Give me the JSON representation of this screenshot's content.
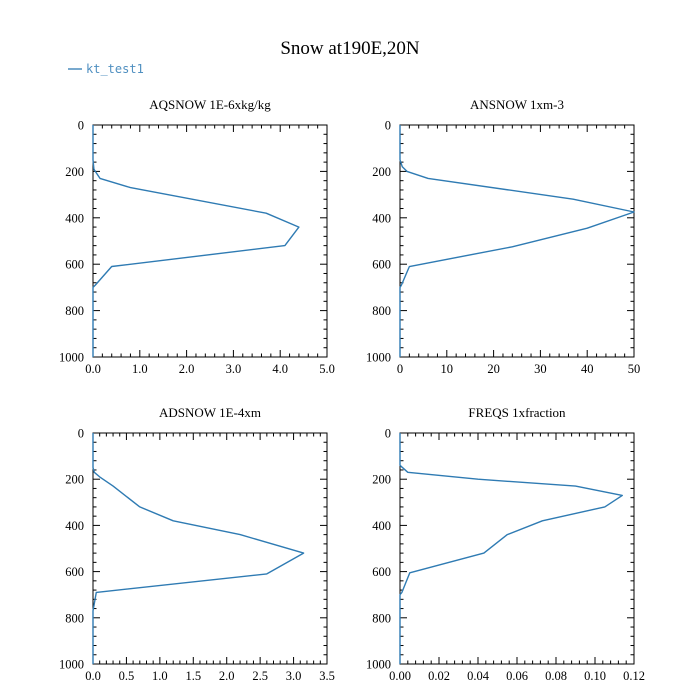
{
  "title": "Snow at190E,20N",
  "legend": {
    "items": [
      {
        "name": "kt_test1",
        "color": "#2f7bb3"
      }
    ],
    "placement": "top-left"
  },
  "chart_data": [
    {
      "type": "line",
      "title": "AQSNOW  1E-6xkg/kg",
      "xlim": [
        0,
        5
      ],
      "ylim": [
        0,
        1000
      ],
      "y_inverted": true,
      "x_ticks": [
        "0.0",
        "1.0",
        "2.0",
        "3.0",
        "4.0",
        "5.0"
      ],
      "x_tick_values": [
        0,
        1,
        2,
        3,
        4,
        5
      ],
      "y_ticks": [
        "0",
        "200",
        "400",
        "600",
        "800",
        "1000"
      ],
      "y_tick_values": [
        0,
        200,
        400,
        600,
        800,
        1000
      ],
      "series": [
        {
          "name": "kt_test1",
          "x": [
            0,
            0,
            0.02,
            0.05,
            0.15,
            0.8,
            3.7,
            4.4,
            4.1,
            0.4,
            0.05,
            0,
            0
          ],
          "y": [
            0,
            150,
            190,
            200,
            230,
            270,
            380,
            440,
            520,
            610,
            690,
            700,
            1000
          ]
        }
      ]
    },
    {
      "type": "line",
      "title": "ANSNOW  1xm-3",
      "xlim": [
        0,
        50
      ],
      "ylim": [
        0,
        1000
      ],
      "y_inverted": true,
      "x_ticks": [
        "0",
        "10",
        "20",
        "30",
        "40",
        "50"
      ],
      "x_tick_values": [
        0,
        10,
        20,
        30,
        40,
        50
      ],
      "y_ticks": [
        "0",
        "200",
        "400",
        "600",
        "800",
        "1000"
      ],
      "y_tick_values": [
        0,
        200,
        400,
        600,
        800,
        1000
      ],
      "series": [
        {
          "name": "kt_test1",
          "x": [
            0,
            0,
            0.5,
            1.5,
            6,
            37,
            50,
            40,
            24,
            2,
            0.3,
            0,
            0
          ],
          "y": [
            0,
            150,
            180,
            200,
            230,
            320,
            375,
            445,
            525,
            610,
            690,
            700,
            1000
          ]
        }
      ]
    },
    {
      "type": "line",
      "title": "ADSNOW  1E-4xm",
      "xlim": [
        0,
        3.5
      ],
      "ylim": [
        0,
        1000
      ],
      "y_inverted": true,
      "x_ticks": [
        "0.0",
        "0.5",
        "1.0",
        "1.5",
        "2.0",
        "2.5",
        "3.0",
        "3.5"
      ],
      "x_tick_values": [
        0,
        0.5,
        1,
        1.5,
        2,
        2.5,
        3,
        3.5
      ],
      "y_ticks": [
        "0",
        "200",
        "400",
        "600",
        "800",
        "1000"
      ],
      "y_tick_values": [
        0,
        200,
        400,
        600,
        800,
        1000
      ],
      "series": [
        {
          "name": "kt_test1",
          "x": [
            0,
            0,
            0.02,
            0.1,
            0.3,
            0.7,
            1.2,
            2.2,
            3.15,
            2.6,
            0.05,
            0,
            0
          ],
          "y": [
            0,
            150,
            170,
            190,
            230,
            320,
            380,
            440,
            520,
            610,
            690,
            770,
            1000
          ]
        }
      ]
    },
    {
      "type": "line",
      "title": "FREQS  1xfraction",
      "xlim": [
        0,
        0.12
      ],
      "ylim": [
        0,
        1000
      ],
      "y_inverted": true,
      "x_ticks": [
        "0.00",
        "0.02",
        "0.04",
        "0.06",
        "0.08",
        "0.10",
        "0.12"
      ],
      "x_tick_values": [
        0,
        0.02,
        0.04,
        0.06,
        0.08,
        0.1,
        0.12
      ],
      "y_ticks": [
        "0",
        "200",
        "400",
        "600",
        "800",
        "1000"
      ],
      "y_tick_values": [
        0,
        200,
        400,
        600,
        800,
        1000
      ],
      "series": [
        {
          "name": "kt_test1",
          "x": [
            0,
            0,
            0.004,
            0.04,
            0.09,
            0.114,
            0.105,
            0.073,
            0.055,
            0.043,
            0.005,
            0.001,
            0,
            0
          ],
          "y": [
            0,
            140,
            170,
            200,
            230,
            270,
            320,
            380,
            440,
            520,
            605,
            690,
            700,
            1000
          ]
        }
      ]
    }
  ]
}
